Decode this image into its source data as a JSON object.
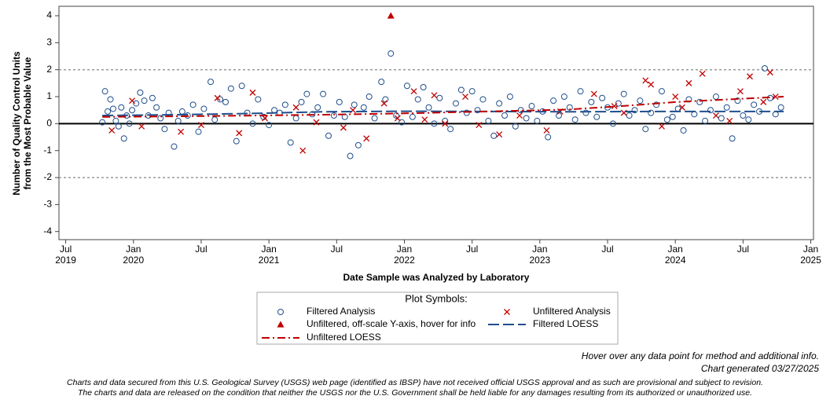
{
  "chart_data": {
    "type": "scatter",
    "x_label": "Date Sample was Analyzed by Laboratory",
    "y_label": [
      "Number of Quality Control Units",
      "from the Most Probable Value"
    ],
    "xlim": [
      2019.45,
      2025.02
    ],
    "ylim": [
      -4.3,
      4.35
    ],
    "xticks": [
      {
        "value": 2019.5,
        "label": "Jul 2019"
      },
      {
        "value": 2020.0,
        "label": "Jan 2020"
      },
      {
        "value": 2020.5,
        "label": "Jul"
      },
      {
        "value": 2021.0,
        "label": "Jan 2021"
      },
      {
        "value": 2021.5,
        "label": "Jul"
      },
      {
        "value": 2022.0,
        "label": "Jan 2022"
      },
      {
        "value": 2022.5,
        "label": "Jul"
      },
      {
        "value": 2023.0,
        "label": "Jan 2023"
      },
      {
        "value": 2023.5,
        "label": "Jul"
      },
      {
        "value": 2024.0,
        "label": "Jan 2024"
      },
      {
        "value": 2024.5,
        "label": "Jul"
      },
      {
        "value": 2025.0,
        "label": "Jan 2025"
      }
    ],
    "yticks": [
      -4,
      -3,
      -2,
      -1,
      0,
      1,
      2,
      3,
      4
    ],
    "zero_line": 0,
    "limit_lines": [
      -2,
      2
    ],
    "legend_title": "Plot Symbols:",
    "series": [
      {
        "name": "Filtered Analysis",
        "marker": "circle",
        "color": "#1f4e8c",
        "x": [
          2019.77,
          2019.79,
          2019.81,
          2019.83,
          2019.85,
          2019.87,
          2019.89,
          2019.91,
          2019.93,
          2019.95,
          2019.97,
          2019.99,
          2020.02,
          2020.05,
          2020.08,
          2020.11,
          2020.14,
          2020.17,
          2020.2,
          2020.23,
          2020.26,
          2020.3,
          2020.33,
          2020.36,
          2020.4,
          2020.44,
          2020.48,
          2020.52,
          2020.57,
          2020.6,
          2020.64,
          2020.68,
          2020.72,
          2020.76,
          2020.8,
          2020.84,
          2020.88,
          2020.92,
          2020.96,
          2021.0,
          2021.04,
          2021.08,
          2021.12,
          2021.16,
          2021.2,
          2021.24,
          2021.28,
          2021.32,
          2021.36,
          2021.4,
          2021.44,
          2021.48,
          2021.52,
          2021.56,
          2021.6,
          2021.63,
          2021.66,
          2021.7,
          2021.74,
          2021.78,
          2021.83,
          2021.86,
          2021.9,
          2021.94,
          2021.98,
          2022.02,
          2022.06,
          2022.1,
          2022.14,
          2022.18,
          2022.22,
          2022.26,
          2022.3,
          2022.34,
          2022.38,
          2022.42,
          2022.46,
          2022.5,
          2022.54,
          2022.58,
          2022.62,
          2022.66,
          2022.7,
          2022.74,
          2022.78,
          2022.82,
          2022.86,
          2022.9,
          2022.94,
          2022.98,
          2023.02,
          2023.06,
          2023.1,
          2023.14,
          2023.18,
          2023.22,
          2023.26,
          2023.3,
          2023.34,
          2023.38,
          2023.42,
          2023.46,
          2023.5,
          2023.54,
          2023.58,
          2023.62,
          2023.66,
          2023.7,
          2023.74,
          2023.78,
          2023.82,
          2023.86,
          2023.9,
          2023.94,
          2023.98,
          2024.02,
          2024.06,
          2024.1,
          2024.14,
          2024.18,
          2024.22,
          2024.26,
          2024.3,
          2024.34,
          2024.38,
          2024.42,
          2024.46,
          2024.5,
          2024.54,
          2024.58,
          2024.62,
          2024.66,
          2024.7,
          2024.74,
          2024.78
        ],
        "values": [
          0.05,
          1.2,
          0.45,
          0.9,
          0.55,
          0.1,
          -0.1,
          0.6,
          -0.55,
          0.3,
          0.0,
          0.5,
          0.75,
          1.15,
          0.85,
          0.3,
          0.95,
          0.6,
          0.2,
          -0.2,
          0.4,
          -0.85,
          0.1,
          0.45,
          0.3,
          0.7,
          -0.3,
          0.55,
          1.55,
          0.15,
          0.9,
          0.8,
          1.3,
          -0.65,
          1.4,
          0.4,
          0.0,
          0.9,
          0.25,
          -0.05,
          0.5,
          0.4,
          0.7,
          -0.7,
          0.2,
          0.8,
          1.1,
          0.35,
          0.6,
          1.1,
          -0.45,
          0.3,
          0.8,
          0.25,
          -1.2,
          0.7,
          -0.8,
          0.6,
          1.0,
          0.2,
          1.55,
          0.9,
          2.6,
          0.3,
          0.05,
          1.4,
          0.25,
          0.9,
          1.35,
          0.6,
          0.0,
          0.95,
          0.1,
          -0.2,
          0.75,
          1.25,
          0.4,
          1.2,
          0.5,
          0.9,
          0.1,
          -0.45,
          0.75,
          0.3,
          1.0,
          -0.1,
          0.5,
          0.2,
          0.65,
          0.1,
          0.45,
          -0.5,
          0.85,
          0.3,
          1.0,
          0.6,
          0.15,
          1.2,
          0.4,
          0.8,
          0.25,
          0.95,
          0.6,
          0.0,
          0.75,
          1.1,
          0.3,
          0.5,
          0.85,
          -0.2,
          0.4,
          0.7,
          1.2,
          0.15,
          0.25,
          0.55,
          -0.25,
          0.9,
          0.35,
          0.8,
          0.1,
          0.5,
          1.0,
          0.2,
          0.6,
          -0.55,
          0.85,
          0.3,
          0.15,
          0.7,
          0.45,
          2.05,
          0.95,
          0.35,
          0.6
        ]
      },
      {
        "name": "Unfiltered Analysis",
        "marker": "x",
        "color": "#c00000",
        "x": [
          2019.84,
          2019.99,
          2020.06,
          2020.35,
          2020.5,
          2020.62,
          2020.78,
          2020.88,
          2020.97,
          2021.2,
          2021.25,
          2021.35,
          2021.55,
          2021.62,
          2021.72,
          2021.85,
          2021.95,
          2022.07,
          2022.15,
          2022.22,
          2022.3,
          2022.45,
          2022.55,
          2022.7,
          2022.85,
          2023.05,
          2023.15,
          2023.4,
          2023.55,
          2023.62,
          2023.78,
          2023.82,
          2023.9,
          2024.0,
          2024.05,
          2024.1,
          2024.2,
          2024.3,
          2024.4,
          2024.48,
          2024.55,
          2024.65,
          2024.7,
          2024.74
        ],
        "values": [
          -0.25,
          0.85,
          -0.1,
          -0.3,
          -0.05,
          0.95,
          -0.35,
          1.15,
          0.2,
          0.6,
          -1.0,
          0.05,
          -0.15,
          0.5,
          -0.55,
          0.75,
          0.2,
          1.2,
          0.15,
          1.05,
          0.0,
          1.0,
          -0.05,
          -0.4,
          0.3,
          -0.25,
          0.45,
          1.1,
          0.65,
          0.4,
          1.6,
          1.45,
          -0.1,
          1.0,
          0.6,
          1.5,
          1.85,
          0.3,
          0.1,
          1.2,
          1.75,
          0.8,
          1.9,
          1.0
        ]
      },
      {
        "name": "Unfiltered, off-scale Y-axis, hover for info",
        "marker": "triangle",
        "color": "#c00000",
        "x": [
          2021.9
        ],
        "values": [
          4
        ]
      },
      {
        "name": "Filtered LOESS",
        "marker": "line",
        "color": "#1f4e8c",
        "x": [
          2019.77,
          2020.3,
          2020.9,
          2021.4,
          2022.0,
          2022.6,
          2023.2,
          2023.8,
          2024.4,
          2024.8
        ],
        "values": [
          0.3,
          0.33,
          0.38,
          0.44,
          0.46,
          0.45,
          0.44,
          0.45,
          0.45,
          0.45
        ]
      },
      {
        "name": "Unfiltered LOESS",
        "marker": "dashdot",
        "color": "#c00000",
        "x": [
          2019.77,
          2020.3,
          2020.9,
          2021.4,
          2022.0,
          2022.6,
          2023.2,
          2023.6,
          2024.0,
          2024.4,
          2024.8
        ],
        "values": [
          0.25,
          0.27,
          0.3,
          0.33,
          0.38,
          0.45,
          0.52,
          0.65,
          0.8,
          0.9,
          1.0
        ]
      }
    ],
    "notes": [
      "Hover over any data point for method and additional info.",
      "Chart generated 03/27/2025"
    ],
    "disclaimer": [
      "Charts and data secured from this U.S. Geological Survey (USGS) web page (identified as IBSP) have not received official USGS approval and as such are provisional and subject to revision.",
      "The charts and data are released on the condition that neither the USGS nor the U.S. Government shall be held liable for any damages resulting from its authorized or unauthorized use."
    ]
  }
}
